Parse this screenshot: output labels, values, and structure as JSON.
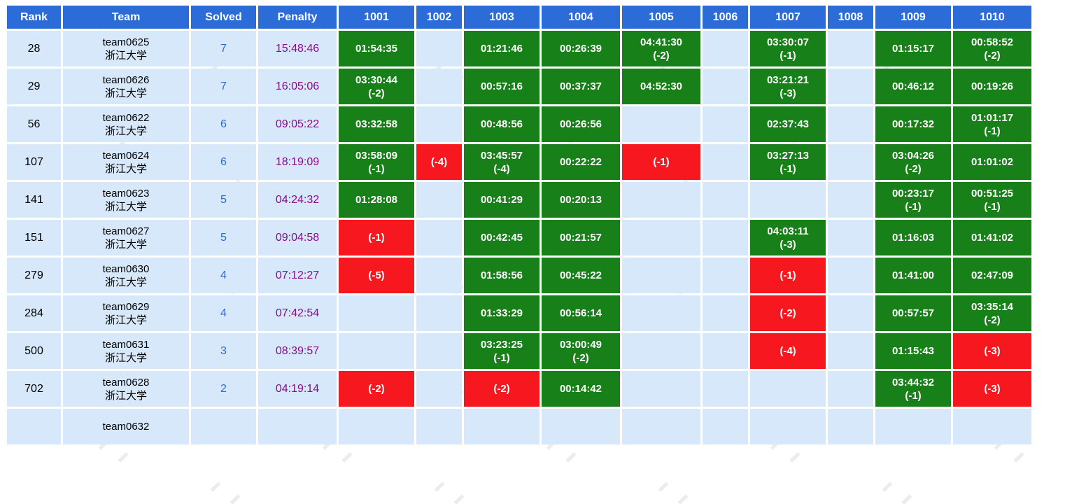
{
  "colors": {
    "header_blue": "#2b6cd9",
    "row_background": "#d6e8fa",
    "solved_green": "#188018",
    "failed_red": "#f7181f",
    "solved_count_blue": "#2b6cd9",
    "penalty_purple": "#8a0a8a"
  },
  "table": {
    "headers": [
      "Rank",
      "Team",
      "Solved",
      "Penalty",
      "1001",
      "1002",
      "1003",
      "1004",
      "1005",
      "1006",
      "1007",
      "1008",
      "1009",
      "1010"
    ],
    "rows": [
      {
        "rank": "28",
        "team_id": "team0625",
        "school": "浙江大学",
        "solved": "7",
        "penalty": "15:48:46",
        "problems": [
          {
            "status": "solved",
            "time": "01:54:35",
            "tries": ""
          },
          {
            "status": "none",
            "time": "",
            "tries": ""
          },
          {
            "status": "solved",
            "time": "01:21:46",
            "tries": ""
          },
          {
            "status": "solved",
            "time": "00:26:39",
            "tries": ""
          },
          {
            "status": "solved",
            "time": "04:41:30",
            "tries": "(-2)"
          },
          {
            "status": "none",
            "time": "",
            "tries": ""
          },
          {
            "status": "solved",
            "time": "03:30:07",
            "tries": "(-1)"
          },
          {
            "status": "none",
            "time": "",
            "tries": ""
          },
          {
            "status": "solved",
            "time": "01:15:17",
            "tries": ""
          },
          {
            "status": "solved",
            "time": "00:58:52",
            "tries": "(-2)"
          }
        ]
      },
      {
        "rank": "29",
        "team_id": "team0626",
        "school": "浙江大学",
        "solved": "7",
        "penalty": "16:05:06",
        "problems": [
          {
            "status": "solved",
            "time": "03:30:44",
            "tries": "(-2)"
          },
          {
            "status": "none",
            "time": "",
            "tries": ""
          },
          {
            "status": "solved",
            "time": "00:57:16",
            "tries": ""
          },
          {
            "status": "solved",
            "time": "00:37:37",
            "tries": ""
          },
          {
            "status": "solved",
            "time": "04:52:30",
            "tries": ""
          },
          {
            "status": "none",
            "time": "",
            "tries": ""
          },
          {
            "status": "solved",
            "time": "03:21:21",
            "tries": "(-3)"
          },
          {
            "status": "none",
            "time": "",
            "tries": ""
          },
          {
            "status": "solved",
            "time": "00:46:12",
            "tries": ""
          },
          {
            "status": "solved",
            "time": "00:19:26",
            "tries": ""
          }
        ]
      },
      {
        "rank": "56",
        "team_id": "team0622",
        "school": "浙江大学",
        "solved": "6",
        "penalty": "09:05:22",
        "problems": [
          {
            "status": "solved",
            "time": "03:32:58",
            "tries": ""
          },
          {
            "status": "none",
            "time": "",
            "tries": ""
          },
          {
            "status": "solved",
            "time": "00:48:56",
            "tries": ""
          },
          {
            "status": "solved",
            "time": "00:26:56",
            "tries": ""
          },
          {
            "status": "none",
            "time": "",
            "tries": ""
          },
          {
            "status": "none",
            "time": "",
            "tries": ""
          },
          {
            "status": "solved",
            "time": "02:37:43",
            "tries": ""
          },
          {
            "status": "none",
            "time": "",
            "tries": ""
          },
          {
            "status": "solved",
            "time": "00:17:32",
            "tries": ""
          },
          {
            "status": "solved",
            "time": "01:01:17",
            "tries": "(-1)"
          }
        ]
      },
      {
        "rank": "107",
        "team_id": "team0624",
        "school": "浙江大学",
        "solved": "6",
        "penalty": "18:19:09",
        "problems": [
          {
            "status": "solved",
            "time": "03:58:09",
            "tries": "(-1)"
          },
          {
            "status": "failed",
            "time": "",
            "tries": "(-4)"
          },
          {
            "status": "solved",
            "time": "03:45:57",
            "tries": "(-4)"
          },
          {
            "status": "solved",
            "time": "00:22:22",
            "tries": ""
          },
          {
            "status": "failed",
            "time": "",
            "tries": "(-1)"
          },
          {
            "status": "none",
            "time": "",
            "tries": ""
          },
          {
            "status": "solved",
            "time": "03:27:13",
            "tries": "(-1)"
          },
          {
            "status": "none",
            "time": "",
            "tries": ""
          },
          {
            "status": "solved",
            "time": "03:04:26",
            "tries": "(-2)"
          },
          {
            "status": "solved",
            "time": "01:01:02",
            "tries": ""
          }
        ]
      },
      {
        "rank": "141",
        "team_id": "team0623",
        "school": "浙江大学",
        "solved": "5",
        "penalty": "04:24:32",
        "problems": [
          {
            "status": "solved",
            "time": "01:28:08",
            "tries": ""
          },
          {
            "status": "none",
            "time": "",
            "tries": ""
          },
          {
            "status": "solved",
            "time": "00:41:29",
            "tries": ""
          },
          {
            "status": "solved",
            "time": "00:20:13",
            "tries": ""
          },
          {
            "status": "none",
            "time": "",
            "tries": ""
          },
          {
            "status": "none",
            "time": "",
            "tries": ""
          },
          {
            "status": "none",
            "time": "",
            "tries": ""
          },
          {
            "status": "none",
            "time": "",
            "tries": ""
          },
          {
            "status": "solved",
            "time": "00:23:17",
            "tries": "(-1)"
          },
          {
            "status": "solved",
            "time": "00:51:25",
            "tries": "(-1)"
          }
        ]
      },
      {
        "rank": "151",
        "team_id": "team0627",
        "school": "浙江大学",
        "solved": "5",
        "penalty": "09:04:58",
        "problems": [
          {
            "status": "failed",
            "time": "",
            "tries": "(-1)"
          },
          {
            "status": "none",
            "time": "",
            "tries": ""
          },
          {
            "status": "solved",
            "time": "00:42:45",
            "tries": ""
          },
          {
            "status": "solved",
            "time": "00:21:57",
            "tries": ""
          },
          {
            "status": "none",
            "time": "",
            "tries": ""
          },
          {
            "status": "none",
            "time": "",
            "tries": ""
          },
          {
            "status": "solved",
            "time": "04:03:11",
            "tries": "(-3)"
          },
          {
            "status": "none",
            "time": "",
            "tries": ""
          },
          {
            "status": "solved",
            "time": "01:16:03",
            "tries": ""
          },
          {
            "status": "solved",
            "time": "01:41:02",
            "tries": ""
          }
        ]
      },
      {
        "rank": "279",
        "team_id": "team0630",
        "school": "浙江大学",
        "solved": "4",
        "penalty": "07:12:27",
        "problems": [
          {
            "status": "failed",
            "time": "",
            "tries": "(-5)"
          },
          {
            "status": "none",
            "time": "",
            "tries": ""
          },
          {
            "status": "solved",
            "time": "01:58:56",
            "tries": ""
          },
          {
            "status": "solved",
            "time": "00:45:22",
            "tries": ""
          },
          {
            "status": "none",
            "time": "",
            "tries": ""
          },
          {
            "status": "none",
            "time": "",
            "tries": ""
          },
          {
            "status": "failed",
            "time": "",
            "tries": "(-1)"
          },
          {
            "status": "none",
            "time": "",
            "tries": ""
          },
          {
            "status": "solved",
            "time": "01:41:00",
            "tries": ""
          },
          {
            "status": "solved",
            "time": "02:47:09",
            "tries": ""
          }
        ]
      },
      {
        "rank": "284",
        "team_id": "team0629",
        "school": "浙江大学",
        "solved": "4",
        "penalty": "07:42:54",
        "problems": [
          {
            "status": "none",
            "time": "",
            "tries": ""
          },
          {
            "status": "none",
            "time": "",
            "tries": ""
          },
          {
            "status": "solved",
            "time": "01:33:29",
            "tries": ""
          },
          {
            "status": "solved",
            "time": "00:56:14",
            "tries": ""
          },
          {
            "status": "none",
            "time": "",
            "tries": ""
          },
          {
            "status": "none",
            "time": "",
            "tries": ""
          },
          {
            "status": "failed",
            "time": "",
            "tries": "(-2)"
          },
          {
            "status": "none",
            "time": "",
            "tries": ""
          },
          {
            "status": "solved",
            "time": "00:57:57",
            "tries": ""
          },
          {
            "status": "solved",
            "time": "03:35:14",
            "tries": "(-2)"
          }
        ]
      },
      {
        "rank": "500",
        "team_id": "team0631",
        "school": "浙江大学",
        "solved": "3",
        "penalty": "08:39:57",
        "problems": [
          {
            "status": "none",
            "time": "",
            "tries": ""
          },
          {
            "status": "none",
            "time": "",
            "tries": ""
          },
          {
            "status": "solved",
            "time": "03:23:25",
            "tries": "(-1)"
          },
          {
            "status": "solved",
            "time": "03:00:49",
            "tries": "(-2)"
          },
          {
            "status": "none",
            "time": "",
            "tries": ""
          },
          {
            "status": "none",
            "time": "",
            "tries": ""
          },
          {
            "status": "failed",
            "time": "",
            "tries": "(-4)"
          },
          {
            "status": "none",
            "time": "",
            "tries": ""
          },
          {
            "status": "solved",
            "time": "01:15:43",
            "tries": ""
          },
          {
            "status": "failed",
            "time": "",
            "tries": "(-3)"
          }
        ]
      },
      {
        "rank": "702",
        "team_id": "team0628",
        "school": "浙江大学",
        "solved": "2",
        "penalty": "04:19:14",
        "problems": [
          {
            "status": "failed",
            "time": "",
            "tries": "(-2)"
          },
          {
            "status": "none",
            "time": "",
            "tries": ""
          },
          {
            "status": "failed",
            "time": "",
            "tries": "(-2)"
          },
          {
            "status": "solved",
            "time": "00:14:42",
            "tries": ""
          },
          {
            "status": "none",
            "time": "",
            "tries": ""
          },
          {
            "status": "none",
            "time": "",
            "tries": ""
          },
          {
            "status": "none",
            "time": "",
            "tries": ""
          },
          {
            "status": "none",
            "time": "",
            "tries": ""
          },
          {
            "status": "solved",
            "time": "03:44:32",
            "tries": "(-1)"
          },
          {
            "status": "failed",
            "time": "",
            "tries": "(-3)"
          }
        ]
      },
      {
        "rank": "",
        "team_id": "team0632",
        "school": "",
        "solved": "",
        "penalty": "",
        "problems": [
          {
            "status": "none",
            "time": "",
            "tries": ""
          },
          {
            "status": "none",
            "time": "",
            "tries": ""
          },
          {
            "status": "none",
            "time": "",
            "tries": ""
          },
          {
            "status": "none",
            "time": "",
            "tries": ""
          },
          {
            "status": "none",
            "time": "",
            "tries": ""
          },
          {
            "status": "none",
            "time": "",
            "tries": ""
          },
          {
            "status": "none",
            "time": "",
            "tries": ""
          },
          {
            "status": "none",
            "time": "",
            "tries": ""
          },
          {
            "status": "none",
            "time": "",
            "tries": ""
          },
          {
            "status": "none",
            "time": "",
            "tries": ""
          }
        ]
      }
    ]
  }
}
